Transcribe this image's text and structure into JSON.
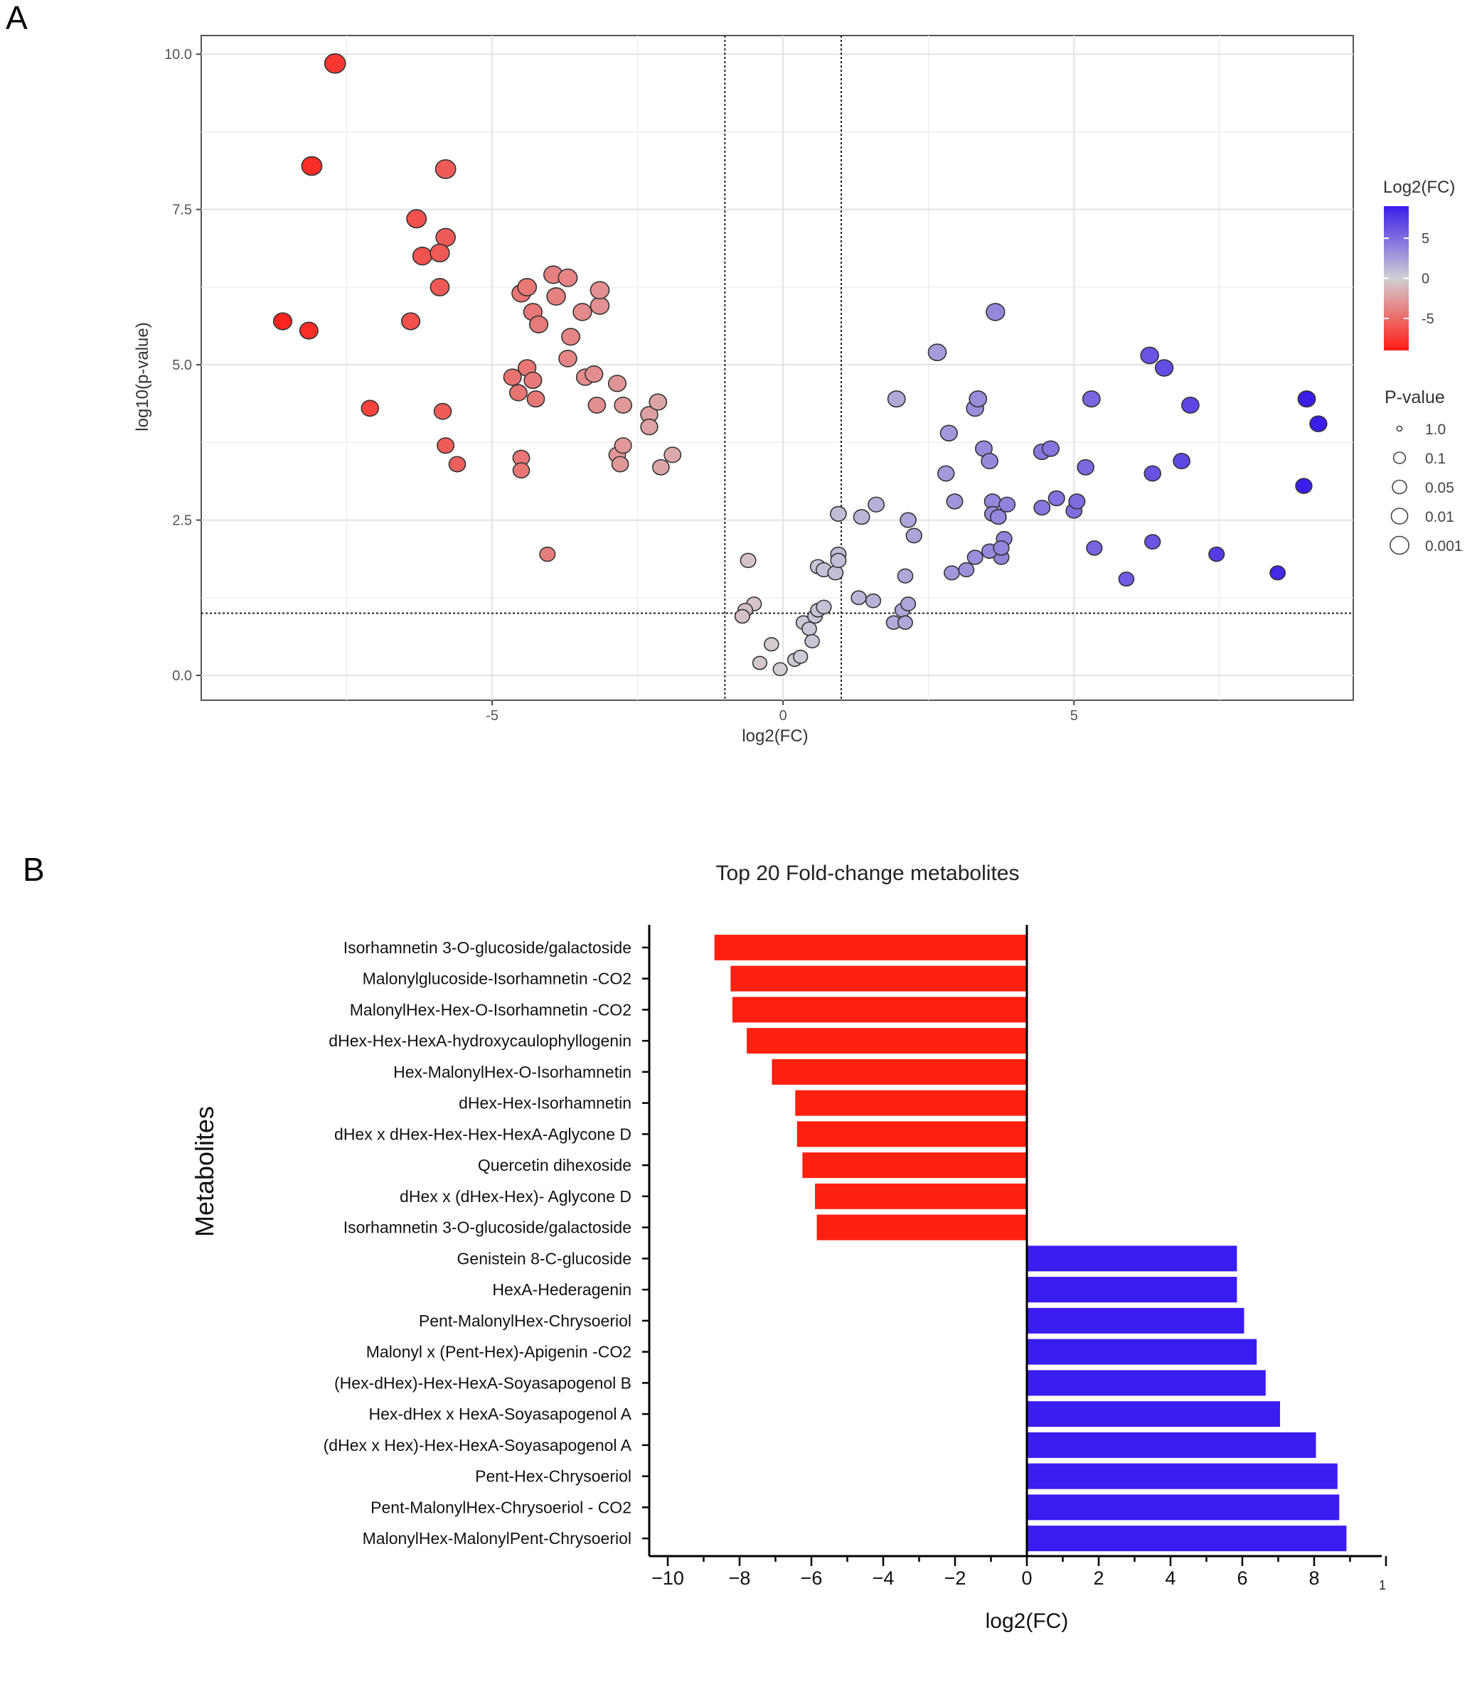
{
  "panels": {
    "a": "A",
    "b": "B"
  },
  "volcano": {
    "type": "scatter",
    "xlabel": "log2(FC)",
    "ylabel": "log10(p-value)",
    "xlim": [
      -10,
      9.8
    ],
    "ylim": [
      -0.4,
      10.3
    ],
    "xticks": [
      -5,
      0,
      5
    ],
    "yticks": [
      0.0,
      2.5,
      5.0,
      7.5,
      10.0
    ],
    "ytick_labels": [
      "0.0",
      "2.5",
      "5.0",
      "7.5",
      "10.0"
    ],
    "vlines": [
      -1,
      1
    ],
    "hline": 1.0,
    "legend_color_title": "Log2(FC)",
    "legend_color_ticks": [
      5,
      0,
      -5
    ],
    "legend_color_range": [
      -9,
      9
    ],
    "legend_size_title": "P-value",
    "legend_size_labels": [
      "1.0",
      "0.1",
      "0.05",
      "0.01",
      "0.001"
    ],
    "points": [
      [
        -7.7,
        9.85
      ],
      [
        -8.1,
        8.2
      ],
      [
        -5.8,
        8.15
      ],
      [
        -6.3,
        7.35
      ],
      [
        -5.8,
        7.05
      ],
      [
        -6.2,
        6.75
      ],
      [
        -5.9,
        6.8
      ],
      [
        -5.9,
        6.25
      ],
      [
        -8.6,
        5.7
      ],
      [
        -8.15,
        5.55
      ],
      [
        -6.4,
        5.7
      ],
      [
        -7.1,
        4.3
      ],
      [
        -5.85,
        4.25
      ],
      [
        -5.8,
        3.7
      ],
      [
        -5.6,
        3.4
      ],
      [
        -4.65,
        4.8
      ],
      [
        -4.55,
        4.55
      ],
      [
        -4.4,
        4.95
      ],
      [
        -4.3,
        4.75
      ],
      [
        -4.25,
        4.45
      ],
      [
        -4.5,
        3.5
      ],
      [
        -4.5,
        3.3
      ],
      [
        -4.05,
        1.95
      ],
      [
        -4.5,
        6.15
      ],
      [
        -4.4,
        6.25
      ],
      [
        -4.3,
        5.85
      ],
      [
        -4.2,
        5.65
      ],
      [
        -3.95,
        6.45
      ],
      [
        -3.7,
        6.4
      ],
      [
        -3.9,
        6.1
      ],
      [
        -3.65,
        5.45
      ],
      [
        -3.7,
        5.1
      ],
      [
        -3.4,
        4.8
      ],
      [
        -3.25,
        4.85
      ],
      [
        -3.2,
        4.35
      ],
      [
        -3.45,
        5.85
      ],
      [
        -3.15,
        5.95
      ],
      [
        -3.15,
        6.2
      ],
      [
        -2.85,
        4.7
      ],
      [
        -2.75,
        4.35
      ],
      [
        -2.85,
        3.55
      ],
      [
        -2.75,
        3.7
      ],
      [
        -2.8,
        3.4
      ],
      [
        -2.3,
        4.2
      ],
      [
        -2.3,
        4.0
      ],
      [
        -2.15,
        4.4
      ],
      [
        -2.1,
        3.35
      ],
      [
        -1.9,
        3.55
      ],
      [
        -0.6,
        1.85
      ],
      [
        -0.5,
        1.15
      ],
      [
        -0.65,
        1.05
      ],
      [
        -0.7,
        0.95
      ],
      [
        -0.4,
        0.2
      ],
      [
        -0.2,
        0.5
      ],
      [
        -0.05,
        0.1
      ],
      [
        0.2,
        0.25
      ],
      [
        0.3,
        0.3
      ],
      [
        0.35,
        0.85
      ],
      [
        0.45,
        0.75
      ],
      [
        0.5,
        0.55
      ],
      [
        0.55,
        0.95
      ],
      [
        0.6,
        1.05
      ],
      [
        0.7,
        1.1
      ],
      [
        0.6,
        1.75
      ],
      [
        0.7,
        1.7
      ],
      [
        0.9,
        1.65
      ],
      [
        0.95,
        1.95
      ],
      [
        0.95,
        1.85
      ],
      [
        0.95,
        2.6
      ],
      [
        1.3,
        1.25
      ],
      [
        1.55,
        1.2
      ],
      [
        1.35,
        2.55
      ],
      [
        1.6,
        2.75
      ],
      [
        1.9,
        0.85
      ],
      [
        2.05,
        1.05
      ],
      [
        2.1,
        0.85
      ],
      [
        2.15,
        1.15
      ],
      [
        2.1,
        1.6
      ],
      [
        2.15,
        2.5
      ],
      [
        2.25,
        2.25
      ],
      [
        1.95,
        4.45
      ],
      [
        2.65,
        5.2
      ],
      [
        2.8,
        3.25
      ],
      [
        2.85,
        3.9
      ],
      [
        2.95,
        2.8
      ],
      [
        2.9,
        1.65
      ],
      [
        3.15,
        1.7
      ],
      [
        3.3,
        1.9
      ],
      [
        3.3,
        4.3
      ],
      [
        3.35,
        4.45
      ],
      [
        3.45,
        3.65
      ],
      [
        3.55,
        3.45
      ],
      [
        3.6,
        2.8
      ],
      [
        3.6,
        2.6
      ],
      [
        3.7,
        2.55
      ],
      [
        3.75,
        1.9
      ],
      [
        3.8,
        2.2
      ],
      [
        3.55,
        2.0
      ],
      [
        3.75,
        2.05
      ],
      [
        3.85,
        2.75
      ],
      [
        3.65,
        5.85
      ],
      [
        4.45,
        2.7
      ],
      [
        4.45,
        3.6
      ],
      [
        4.6,
        3.65
      ],
      [
        4.7,
        2.85
      ],
      [
        5.0,
        2.65
      ],
      [
        5.05,
        2.8
      ],
      [
        5.2,
        3.35
      ],
      [
        5.3,
        4.45
      ],
      [
        5.35,
        2.05
      ],
      [
        5.9,
        1.55
      ],
      [
        6.3,
        5.15
      ],
      [
        6.35,
        3.25
      ],
      [
        6.35,
        2.15
      ],
      [
        6.55,
        4.95
      ],
      [
        6.85,
        3.45
      ],
      [
        7.0,
        4.35
      ],
      [
        7.45,
        1.95
      ],
      [
        8.5,
        1.65
      ],
      [
        8.95,
        3.05
      ],
      [
        9.0,
        4.45
      ],
      [
        9.2,
        4.05
      ]
    ]
  },
  "chart_data": {
    "type": "bar",
    "orientation": "horizontal",
    "title": "Top 20 Fold-change metabolites",
    "xlabel": "log2(FC)",
    "ylabel": "Metabolites",
    "xlim": [
      -10,
      10
    ],
    "xticks": [
      -10,
      -8,
      -6,
      -4,
      -2,
      0,
      2,
      4,
      6,
      8
    ],
    "xtick_labels": [
      "−10",
      "−8",
      "−6",
      "−4",
      "−2",
      "0",
      "2",
      "4",
      "6",
      "8"
    ],
    "edge_tick_label": "1",
    "categories": [
      "Isorhamnetin 3-O-glucoside/galactoside",
      "Malonylglucoside-Isorhamnetin -CO2",
      "MalonylHex-Hex-O-Isorhamnetin -CO2",
      "dHex-Hex-HexA-hydroxycaulophyllogenin",
      "Hex-MalonylHex-O-Isorhamnetin",
      "dHex-Hex-Isorhamnetin",
      "dHex x dHex-Hex-Hex-HexA-Aglycone D",
      "Quercetin dihexoside",
      "dHex x (dHex-Hex)- Aglycone D",
      "Isorhamnetin 3-O-glucoside/galactoside",
      "Genistein 8-C-glucoside",
      "HexA-Hederagenin",
      "Pent-MalonylHex-Chrysoeriol",
      "Malonyl x (Pent-Hex)-Apigenin -CO2",
      "(Hex-dHex)-Hex-HexA-Soyasapogenol B",
      "Hex-dHex x HexA-Soyasapogenol A",
      "(dHex x Hex)-Hex-HexA-Soyasapogenol A",
      "Pent-Hex-Chrysoeriol",
      "Pent-MalonylHex-Chrysoeriol - CO2",
      "MalonylHex-MalonylPent-Chrysoeriol"
    ],
    "values": [
      -8.7,
      -8.25,
      -8.2,
      -7.8,
      -7.1,
      -6.45,
      -6.4,
      -6.25,
      -5.9,
      -5.85,
      5.85,
      5.85,
      6.05,
      6.4,
      6.65,
      7.05,
      8.05,
      8.65,
      8.7,
      8.9
    ],
    "colors": {
      "negative": "#ff2010",
      "positive": "#3a1df0"
    }
  }
}
